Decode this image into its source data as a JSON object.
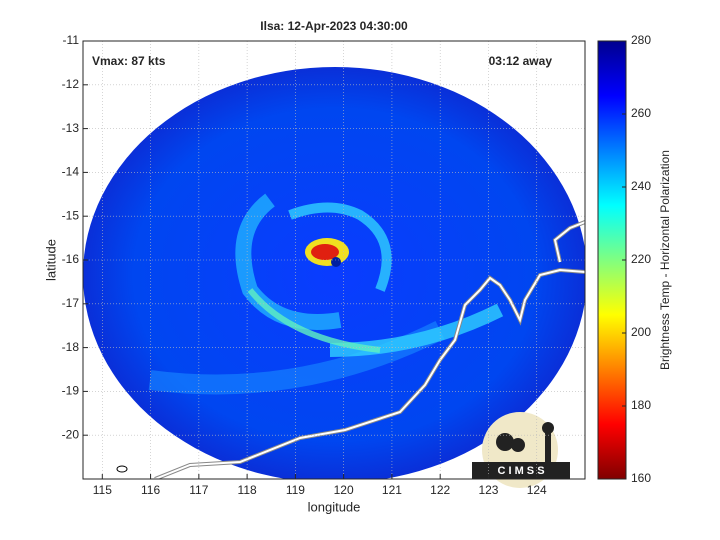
{
  "chart_data": {
    "type": "map",
    "title": "Ilsa: 12-Apr-2023 04:30:00",
    "xlabel": "longitude",
    "ylabel": "latitude",
    "annotations": [
      "Vmax: 87 kts",
      "03:12 away"
    ],
    "logo_text": "C I M S S",
    "xlim": [
      114.6,
      125
    ],
    "xticks": [
      115,
      116,
      117,
      118,
      119,
      120,
      121,
      122,
      123,
      124
    ],
    "ylim": [
      -21,
      -11
    ],
    "yticks": [
      -11,
      -12,
      -13,
      -14,
      -15,
      -16,
      -17,
      -18,
      -19,
      -20
    ],
    "grid": true,
    "colorbar_label": "Brightness Temp - Horizontal Polarization",
    "clim": [
      160,
      280
    ],
    "cticks": [
      160,
      180,
      200,
      220,
      240,
      260,
      280
    ],
    "colormap": [
      "#800000",
      "#ff0000",
      "#ff8000",
      "#ffff00",
      "#80ff80",
      "#00ffff",
      "#0080ff",
      "#0000ff",
      "#00008f"
    ]
  }
}
